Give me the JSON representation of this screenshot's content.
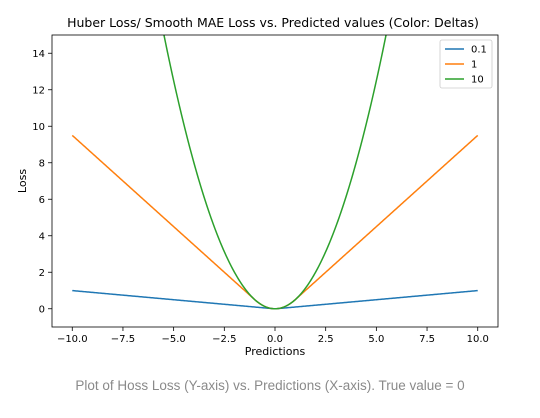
{
  "caption": "Plot of Hoss Loss (Y-axis) vs. Predictions (X-axis). True value = 0",
  "chart_data": {
    "type": "line",
    "title": "Huber Loss/ Smooth MAE Loss vs. Predicted values (Color: Deltas)",
    "xlabel": "Predictions",
    "ylabel": "Loss",
    "xlim": [
      -11,
      11
    ],
    "ylim": [
      -1,
      15
    ],
    "xticks": [
      -10,
      -7.5,
      -5,
      -2.5,
      0,
      2.5,
      5,
      7.5,
      10
    ],
    "xtick_labels": [
      "−10.0",
      "−7.5",
      "−5.0",
      "−2.5",
      "0.0",
      "2.5",
      "5.0",
      "7.5",
      "10.0"
    ],
    "yticks": [
      0,
      2,
      4,
      6,
      8,
      10,
      12,
      14
    ],
    "ytick_labels": [
      "0",
      "2",
      "4",
      "6",
      "8",
      "10",
      "12",
      "14"
    ],
    "legend": {
      "placement": "upper right",
      "entries": [
        "0.1",
        "1",
        "10"
      ]
    },
    "grid": false,
    "true_value": 0,
    "x_range": [
      -10,
      10
    ],
    "series": [
      {
        "name": "0.1",
        "delta": 0.1,
        "color": "#1f77b4",
        "x": [
          -10,
          -5,
          -0.1,
          0,
          0.1,
          5,
          10
        ],
        "y": [
          0.995,
          0.495,
          0.005,
          0,
          0.005,
          0.495,
          0.995
        ]
      },
      {
        "name": "1",
        "delta": 1,
        "color": "#ff7f0e",
        "x": [
          -10,
          -5,
          -1,
          0,
          1,
          5,
          10
        ],
        "y": [
          9.5,
          4.5,
          0.5,
          0,
          0.5,
          4.5,
          9.5
        ]
      },
      {
        "name": "10",
        "delta": 10,
        "color": "#2ca02c",
        "x": [
          -5.48,
          -4,
          -3,
          -2,
          -1,
          0,
          1,
          2,
          3,
          4,
          5.48
        ],
        "y": [
          15,
          8,
          4.5,
          2,
          0.5,
          0,
          0.5,
          2,
          4.5,
          8,
          15
        ]
      }
    ]
  }
}
